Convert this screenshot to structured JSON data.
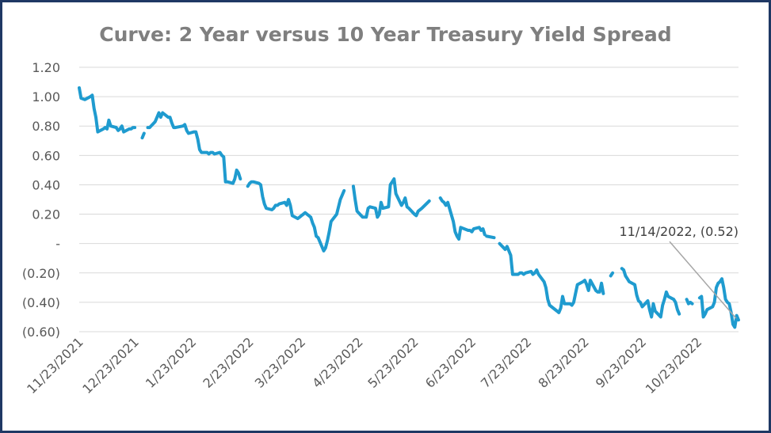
{
  "chart_data": {
    "type": "line",
    "title": "Curve: 2 Year versus 10 Year Treasury Yield Spread",
    "xlabel": "",
    "ylabel": "",
    "x_range": [
      "11/23/2021",
      "11/14/2022"
    ],
    "ylim": [
      -0.6,
      1.2
    ],
    "y_ticks": [
      1.2,
      1.0,
      0.8,
      0.6,
      0.4,
      0.2,
      0,
      -0.2,
      -0.4,
      -0.6
    ],
    "y_tick_labels": [
      "1.20",
      "1.00",
      "0.80",
      "0.60",
      "0.40",
      "0.20",
      "-",
      "(0.20)",
      "(0.40)",
      "(0.60)"
    ],
    "x_tick_labels": [
      "11/23/2021",
      "12/23/2021",
      "1/23/2022",
      "2/23/2022",
      "3/23/2022",
      "4/23/2022",
      "5/23/2022",
      "6/23/2022",
      "7/23/2022",
      "8/23/2022",
      "9/23/2022",
      "10/23/2022"
    ],
    "grid": true,
    "legend": "none",
    "line_color": "#1f9bcf",
    "series": [
      {
        "points": [
          [
            "2021-11-23",
            1.06
          ],
          [
            "2021-11-24",
            0.99
          ],
          [
            "2021-11-26",
            0.98
          ],
          [
            "2021-11-29",
            1.0
          ],
          [
            "2021-11-30",
            1.01
          ],
          [
            "2021-12-01",
            0.92
          ],
          [
            "2021-12-02",
            0.86
          ],
          [
            "2021-12-03",
            0.76
          ],
          [
            "2021-12-06",
            0.78
          ],
          [
            "2021-12-07",
            0.79
          ],
          [
            "2021-12-08",
            0.78
          ],
          [
            "2021-12-09",
            0.84
          ],
          [
            "2021-12-10",
            0.8
          ],
          [
            "2021-12-13",
            0.79
          ],
          [
            "2021-12-14",
            0.77
          ],
          [
            "2021-12-15",
            0.78
          ],
          [
            "2021-12-16",
            0.8
          ],
          [
            "2021-12-17",
            0.76
          ],
          [
            "2021-12-20",
            0.78
          ],
          [
            "2021-12-21",
            0.78
          ],
          [
            "2021-12-22",
            0.79
          ],
          [
            "2021-12-23",
            0.79
          ],
          null,
          [
            "2021-12-27",
            0.72
          ],
          [
            "2021-12-28",
            0.75
          ],
          null,
          [
            "2021-12-30",
            0.79
          ],
          [
            "2021-12-31",
            0.79
          ],
          [
            "2022-01-03",
            0.83
          ],
          [
            "2022-01-04",
            0.86
          ],
          [
            "2022-01-05",
            0.89
          ],
          [
            "2022-01-06",
            0.86
          ],
          [
            "2022-01-07",
            0.89
          ],
          [
            "2022-01-10",
            0.86
          ],
          [
            "2022-01-11",
            0.86
          ],
          [
            "2022-01-12",
            0.82
          ],
          [
            "2022-01-13",
            0.79
          ],
          [
            "2022-01-14",
            0.79
          ],
          [
            "2022-01-18",
            0.8
          ],
          [
            "2022-01-19",
            0.81
          ],
          [
            "2022-01-20",
            0.77
          ],
          [
            "2022-01-21",
            0.75
          ],
          [
            "2022-01-24",
            0.76
          ],
          [
            "2022-01-25",
            0.76
          ],
          [
            "2022-01-26",
            0.71
          ],
          [
            "2022-01-27",
            0.64
          ],
          [
            "2022-01-28",
            0.62
          ],
          [
            "2022-01-31",
            0.62
          ],
          [
            "2022-02-01",
            0.61
          ],
          [
            "2022-02-02",
            0.62
          ],
          [
            "2022-02-03",
            0.62
          ],
          [
            "2022-02-04",
            0.61
          ],
          [
            "2022-02-07",
            0.62
          ],
          [
            "2022-02-08",
            0.6
          ],
          [
            "2022-02-09",
            0.59
          ],
          [
            "2022-02-10",
            0.42
          ],
          [
            "2022-02-11",
            0.42
          ],
          [
            "2022-02-14",
            0.41
          ],
          [
            "2022-02-15",
            0.44
          ],
          [
            "2022-02-16",
            0.5
          ],
          [
            "2022-02-17",
            0.48
          ],
          [
            "2022-02-18",
            0.44
          ],
          null,
          [
            "2022-02-22",
            0.39
          ],
          [
            "2022-02-23",
            0.41
          ],
          [
            "2022-02-24",
            0.42
          ],
          [
            "2022-02-25",
            0.42
          ],
          [
            "2022-02-28",
            0.41
          ],
          [
            "2022-03-01",
            0.4
          ],
          [
            "2022-03-02",
            0.32
          ],
          [
            "2022-03-03",
            0.27
          ],
          [
            "2022-03-04",
            0.24
          ],
          [
            "2022-03-07",
            0.23
          ],
          [
            "2022-03-08",
            0.24
          ],
          [
            "2022-03-09",
            0.26
          ],
          [
            "2022-03-10",
            0.26
          ],
          [
            "2022-03-11",
            0.27
          ],
          [
            "2022-03-14",
            0.28
          ],
          [
            "2022-03-15",
            0.26
          ],
          [
            "2022-03-16",
            0.3
          ],
          [
            "2022-03-17",
            0.26
          ],
          [
            "2022-03-18",
            0.19
          ],
          [
            "2022-03-21",
            0.17
          ],
          [
            "2022-03-22",
            0.18
          ],
          [
            "2022-03-23",
            0.19
          ],
          [
            "2022-03-24",
            0.2
          ],
          [
            "2022-03-25",
            0.21
          ],
          [
            "2022-03-28",
            0.18
          ],
          [
            "2022-03-29",
            0.14
          ],
          [
            "2022-03-30",
            0.11
          ],
          [
            "2022-03-31",
            0.05
          ],
          [
            "2022-04-01",
            0.04
          ],
          [
            "2022-04-04",
            -0.05
          ],
          [
            "2022-04-05",
            -0.03
          ],
          [
            "2022-04-06",
            0.02
          ],
          [
            "2022-04-07",
            0.08
          ],
          [
            "2022-04-08",
            0.15
          ],
          [
            "2022-04-11",
            0.2
          ],
          [
            "2022-04-12",
            0.25
          ],
          [
            "2022-04-13",
            0.3
          ],
          [
            "2022-04-14",
            0.33
          ],
          [
            "2022-04-15",
            0.36
          ],
          null,
          [
            "2022-04-20",
            0.39
          ],
          [
            "2022-04-21",
            0.3
          ],
          [
            "2022-04-22",
            0.22
          ],
          [
            "2022-04-25",
            0.18
          ],
          [
            "2022-04-26",
            0.18
          ],
          [
            "2022-04-27",
            0.18
          ],
          [
            "2022-04-28",
            0.24
          ],
          [
            "2022-04-29",
            0.25
          ],
          [
            "2022-05-02",
            0.24
          ],
          [
            "2022-05-03",
            0.18
          ],
          [
            "2022-05-04",
            0.2
          ],
          [
            "2022-05-05",
            0.28
          ],
          [
            "2022-05-06",
            0.24
          ],
          [
            "2022-05-09",
            0.25
          ],
          [
            "2022-05-10",
            0.4
          ],
          [
            "2022-05-11",
            0.42
          ],
          [
            "2022-05-12",
            0.44
          ],
          [
            "2022-05-13",
            0.34
          ],
          [
            "2022-05-16",
            0.26
          ],
          [
            "2022-05-17",
            0.28
          ],
          [
            "2022-05-18",
            0.31
          ],
          [
            "2022-05-19",
            0.25
          ],
          [
            "2022-05-20",
            0.24
          ],
          [
            "2022-05-23",
            0.2
          ],
          [
            "2022-05-24",
            0.19
          ],
          [
            "2022-05-25",
            0.22
          ],
          [
            "2022-05-26",
            0.23
          ],
          [
            "2022-05-27",
            0.24
          ],
          [
            "2022-05-31",
            0.29
          ],
          null,
          [
            "2022-06-06",
            0.31
          ],
          [
            "2022-06-07",
            0.29
          ],
          [
            "2022-06-08",
            0.28
          ],
          [
            "2022-06-09",
            0.26
          ],
          [
            "2022-06-10",
            0.28
          ],
          [
            "2022-06-13",
            0.15
          ],
          [
            "2022-06-14",
            0.08
          ],
          [
            "2022-06-15",
            0.05
          ],
          [
            "2022-06-16",
            0.03
          ],
          [
            "2022-06-17",
            0.11
          ],
          [
            "2022-06-21",
            0.09
          ],
          [
            "2022-06-22",
            0.09
          ],
          [
            "2022-06-23",
            0.08
          ],
          [
            "2022-06-24",
            0.1
          ],
          [
            "2022-06-27",
            0.11
          ],
          [
            "2022-06-28",
            0.09
          ],
          [
            "2022-06-29",
            0.1
          ],
          [
            "2022-06-30",
            0.06
          ],
          null,
          [
            "2022-07-01",
            0.05
          ],
          [
            "2022-07-05",
            0.04
          ],
          null,
          [
            "2022-07-08",
            0.0
          ],
          [
            "2022-07-11",
            -0.04
          ],
          [
            "2022-07-12",
            -0.02
          ],
          [
            "2022-07-13",
            -0.05
          ],
          [
            "2022-07-14",
            -0.08
          ],
          [
            "2022-07-15",
            -0.21
          ],
          [
            "2022-07-18",
            -0.21
          ],
          [
            "2022-07-19",
            -0.2
          ],
          [
            "2022-07-20",
            -0.2
          ],
          [
            "2022-07-21",
            -0.21
          ],
          [
            "2022-07-22",
            -0.2
          ],
          [
            "2022-07-25",
            -0.19
          ],
          [
            "2022-07-26",
            -0.21
          ],
          [
            "2022-07-27",
            -0.2
          ],
          [
            "2022-07-28",
            -0.18
          ],
          [
            "2022-07-29",
            -0.21
          ],
          [
            "2022-08-01",
            -0.26
          ],
          [
            "2022-08-02",
            -0.3
          ],
          [
            "2022-08-03",
            -0.38
          ],
          [
            "2022-08-04",
            -0.42
          ],
          [
            "2022-08-05",
            -0.43
          ],
          [
            "2022-08-08",
            -0.46
          ],
          [
            "2022-08-09",
            -0.47
          ],
          [
            "2022-08-10",
            -0.44
          ],
          [
            "2022-08-11",
            -0.36
          ],
          [
            "2022-08-12",
            -0.41
          ],
          [
            "2022-08-15",
            -0.41
          ],
          [
            "2022-08-16",
            -0.42
          ],
          [
            "2022-08-17",
            -0.4
          ],
          [
            "2022-08-18",
            -0.34
          ],
          [
            "2022-08-19",
            -0.28
          ],
          [
            "2022-08-22",
            -0.26
          ],
          [
            "2022-08-23",
            -0.25
          ],
          [
            "2022-08-24",
            -0.28
          ],
          [
            "2022-08-25",
            -0.32
          ],
          [
            "2022-08-26",
            -0.25
          ],
          [
            "2022-08-29",
            -0.32
          ],
          [
            "2022-08-30",
            -0.33
          ],
          [
            "2022-08-31",
            -0.33
          ],
          [
            "2022-09-01",
            -0.27
          ],
          [
            "2022-09-02",
            -0.34
          ],
          null,
          [
            "2022-09-06",
            -0.22
          ],
          [
            "2022-09-07",
            -0.2
          ],
          null,
          [
            "2022-09-12",
            -0.17
          ],
          [
            "2022-09-13",
            -0.18
          ],
          [
            "2022-09-14",
            -0.22
          ],
          [
            "2022-09-15",
            -0.24
          ],
          [
            "2022-09-16",
            -0.26
          ],
          [
            "2022-09-19",
            -0.28
          ],
          [
            "2022-09-20",
            -0.35
          ],
          [
            "2022-09-21",
            -0.39
          ],
          [
            "2022-09-22",
            -0.4
          ],
          [
            "2022-09-23",
            -0.43
          ],
          [
            "2022-09-26",
            -0.39
          ],
          [
            "2022-09-27",
            -0.45
          ],
          [
            "2022-09-28",
            -0.5
          ],
          [
            "2022-09-29",
            -0.41
          ],
          [
            "2022-09-30",
            -0.46
          ],
          [
            "2022-10-03",
            -0.5
          ],
          [
            "2022-10-04",
            -0.42
          ],
          [
            "2022-10-05",
            -0.38
          ],
          [
            "2022-10-06",
            -0.33
          ],
          [
            "2022-10-07",
            -0.36
          ],
          [
            "2022-10-10",
            -0.38
          ],
          [
            "2022-10-11",
            -0.4
          ],
          [
            "2022-10-12",
            -0.45
          ],
          [
            "2022-10-13",
            -0.48
          ],
          null,
          [
            "2022-10-17",
            -0.38
          ],
          [
            "2022-10-18",
            -0.41
          ],
          [
            "2022-10-19",
            -0.4
          ],
          [
            "2022-10-20",
            -0.41
          ],
          null,
          [
            "2022-10-24",
            -0.37
          ],
          [
            "2022-10-25",
            -0.36
          ],
          [
            "2022-10-26",
            -0.5
          ],
          [
            "2022-10-27",
            -0.48
          ],
          [
            "2022-10-28",
            -0.45
          ],
          [
            "2022-10-31",
            -0.43
          ],
          [
            "2022-11-01",
            -0.4
          ],
          [
            "2022-11-02",
            -0.3
          ],
          [
            "2022-11-03",
            -0.27
          ],
          [
            "2022-11-04",
            -0.26
          ],
          [
            "2022-11-05",
            -0.24
          ],
          [
            "2022-11-06",
            -0.3
          ],
          [
            "2022-11-07",
            -0.38
          ],
          [
            "2022-11-08",
            -0.4
          ],
          [
            "2022-11-09",
            -0.41
          ],
          [
            "2022-11-10",
            -0.47
          ],
          [
            "2022-11-11",
            -0.55
          ],
          [
            "2022-11-12",
            -0.57
          ],
          [
            "2022-11-13",
            -0.49
          ],
          [
            "2022-11-14",
            -0.52
          ]
        ]
      }
    ],
    "annotation": {
      "text": "11/14/2022, (0.52)",
      "x": "2022-11-14",
      "y": -0.52
    }
  }
}
